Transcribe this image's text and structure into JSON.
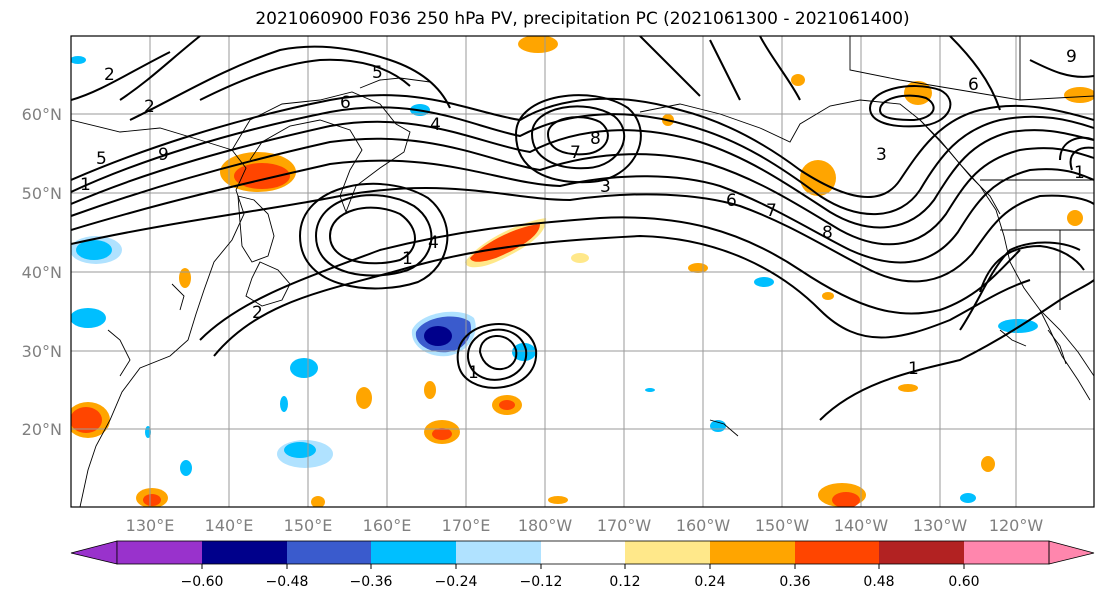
{
  "title": "2021060900 F036 250 hPa PV, precipitation PC (2021061300 - 2021061400)",
  "map": {
    "lon_labels": [
      "130°E",
      "140°E",
      "150°E",
      "160°E",
      "170°E",
      "180°W",
      "170°W",
      "160°W",
      "150°W",
      "140°W",
      "130°W",
      "120°W"
    ],
    "lat_labels": [
      "60°N",
      "50°N",
      "40°N",
      "30°N",
      "20°N"
    ],
    "contour_labels": [
      "2",
      "5",
      "6",
      "7",
      "8",
      "9",
      "3",
      "6",
      "1",
      "1",
      "4",
      "6",
      "5",
      "9",
      "4",
      "1",
      "8",
      "7",
      "2",
      "1",
      "2",
      "3",
      "1"
    ],
    "line_color": "#000000",
    "grid_color": "#9a9a9a"
  },
  "colorbar": {
    "tick_labels": [
      "−0.60",
      "−0.48",
      "−0.36",
      "−0.24",
      "−0.12",
      "0.12",
      "0.24",
      "0.36",
      "0.48",
      "0.60"
    ],
    "colors": [
      "#9932cc",
      "#00008b",
      "#3a5bcd",
      "#00bfff",
      "#b0e2ff",
      "#ffffff",
      "#ffe88a",
      "#ffa500",
      "#ff4500",
      "#b22222",
      "#ff86ad"
    ]
  }
}
